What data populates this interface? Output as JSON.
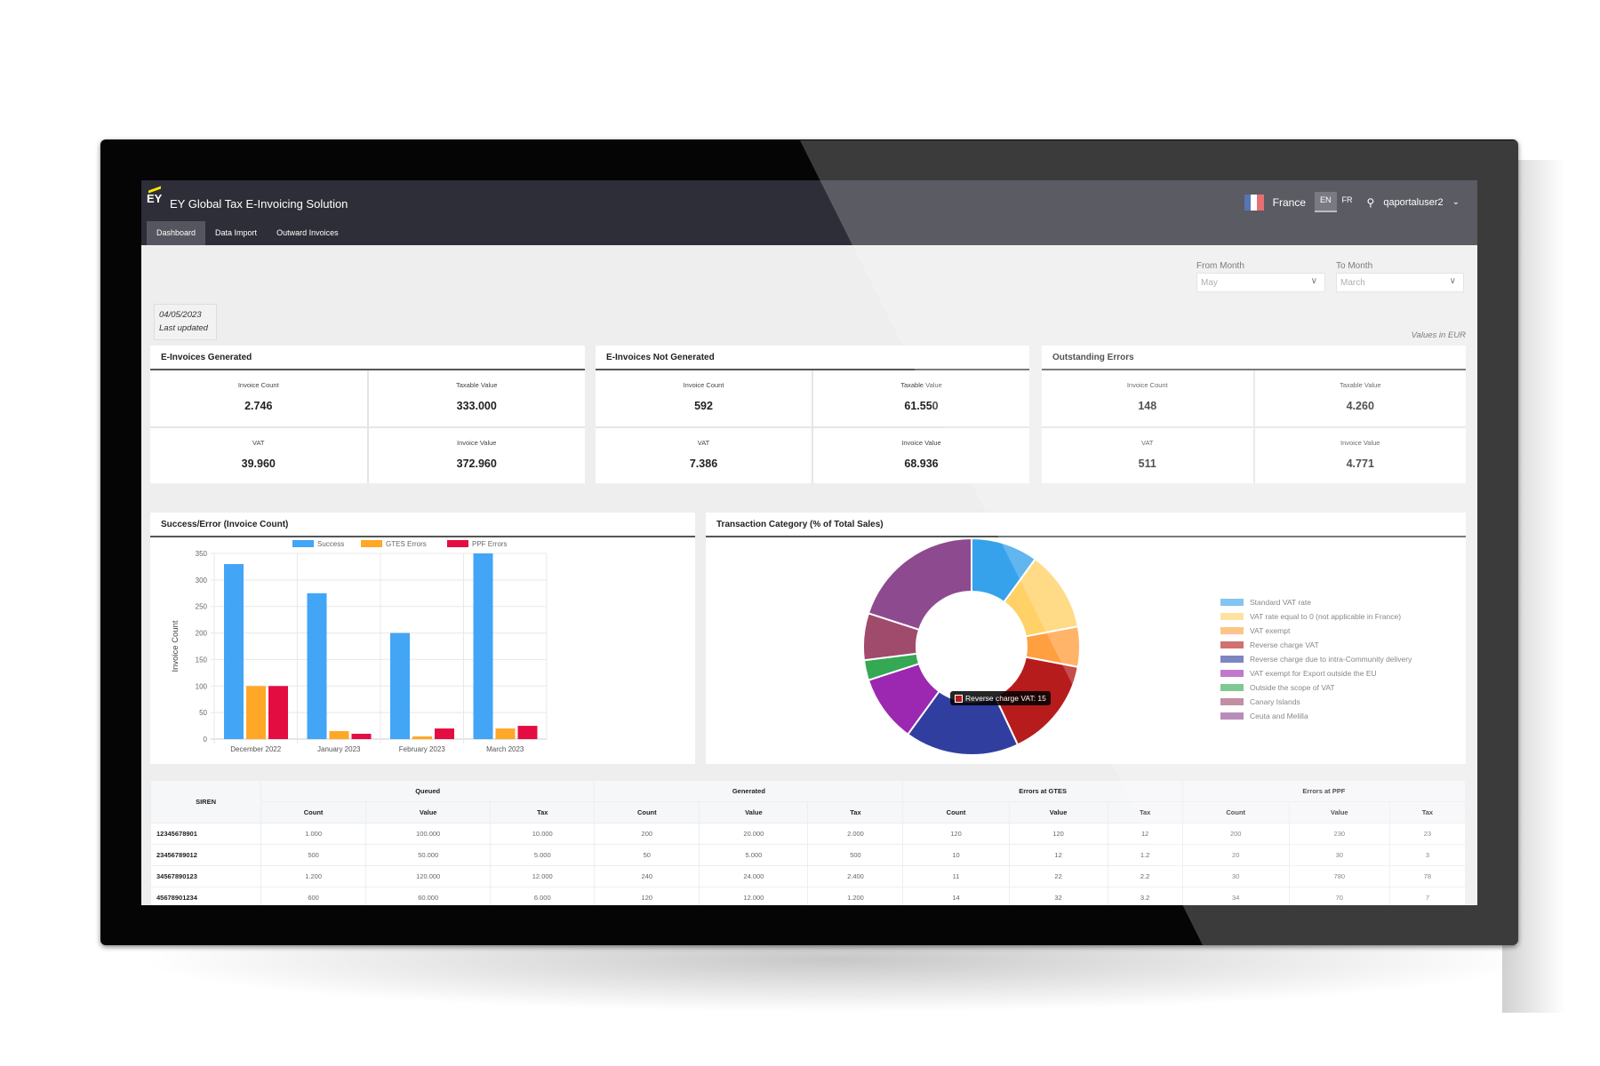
{
  "app": {
    "logo": "EY",
    "title": "EY Global Tax E-Invoicing Solution",
    "country": "France",
    "languages": [
      "EN",
      "FR"
    ],
    "active_language": "EN",
    "user": "qaportaluser2"
  },
  "nav": {
    "tabs": [
      "Dashboard",
      "Data Import",
      "Outward Invoices"
    ],
    "active": "Dashboard"
  },
  "filters": {
    "from_label": "From Month",
    "from_value": "May",
    "to_label": "To Month",
    "to_value": "March"
  },
  "last_updated": {
    "date": "04/05/2023",
    "label": "Last updated"
  },
  "currency_note": "Values in EUR",
  "cards": [
    {
      "title": "E-Invoices Generated",
      "metrics": [
        {
          "label": "Invoice Count",
          "value": "2.746"
        },
        {
          "label": "Taxable Value",
          "value": "333.000"
        },
        {
          "label": "VAT",
          "value": "39.960"
        },
        {
          "label": "Invoice Value",
          "value": "372.960"
        }
      ]
    },
    {
      "title": "E-Invoices Not Generated",
      "metrics": [
        {
          "label": "Invoice Count",
          "value": "592"
        },
        {
          "label": "Taxable Value",
          "value": "61.550"
        },
        {
          "label": "VAT",
          "value": "7.386"
        },
        {
          "label": "Invoice Value",
          "value": "68.936"
        }
      ]
    },
    {
      "title": "Outstanding Errors",
      "metrics": [
        {
          "label": "Invoice Count",
          "value": "148"
        },
        {
          "label": "Taxable Value",
          "value": "4.260"
        },
        {
          "label": "VAT",
          "value": "511"
        },
        {
          "label": "Invoice Value",
          "value": "4.771"
        }
      ]
    }
  ],
  "chart_data": [
    {
      "type": "bar",
      "title": "Success/Error (Invoice Count)",
      "categories": [
        "December 2022",
        "January 2023",
        "February 2023",
        "March 2023"
      ],
      "series": [
        {
          "name": "Success",
          "color": "#42a5f5",
          "values": [
            330,
            275,
            200,
            350
          ]
        },
        {
          "name": "GTES Errors",
          "color": "#ffa726",
          "values": [
            100,
            15,
            5,
            20
          ]
        },
        {
          "name": "PPF Errors",
          "color": "#e30d42",
          "values": [
            100,
            10,
            20,
            25
          ]
        }
      ],
      "xlabel": "",
      "ylabel": "Invoice Count",
      "ylim": [
        0,
        350
      ],
      "yticks": [
        0,
        50,
        100,
        150,
        200,
        250,
        300,
        350
      ],
      "grid": true,
      "legend": "top"
    },
    {
      "type": "pie",
      "title": "Transaction Category (% of Total Sales)",
      "labels": [
        "Standard VAT rate",
        "VAT rate equal to 0 (not applicable in France)",
        "VAT exempt",
        "Reverse charge VAT",
        "Reverse charge due to intra-Community delivery",
        "VAT exempt for Export outside the EU",
        "Outside the scope of VAT",
        "Canary Islands",
        "Ceuta and Melilla"
      ],
      "values": [
        10,
        12,
        6,
        15,
        17,
        10,
        3,
        7,
        20
      ],
      "colors": [
        "#36a2eb",
        "#ffd166",
        "#ff9f40",
        "#b71c1c",
        "#303f9f",
        "#9c27b0",
        "#34a853",
        "#a04a6c",
        "#8e4a8e"
      ],
      "tooltip": "Reverse charge VAT: 15",
      "legend": "right"
    }
  ],
  "table": {
    "siren_header": "SIREN",
    "groups": [
      "Queued",
      "Generated",
      "Errors at GTES",
      "Errors at PPF"
    ],
    "subheaders": [
      "Count",
      "Value",
      "Tax"
    ],
    "rows": [
      [
        "12345678901",
        "1.000",
        "100.000",
        "10.000",
        "200",
        "20.000",
        "2.000",
        "120",
        "120",
        "12",
        "200",
        "230",
        "23"
      ],
      [
        "23456789012",
        "500",
        "50.000",
        "5.000",
        "50",
        "5.000",
        "500",
        "10",
        "12",
        "1.2",
        "20",
        "30",
        "3"
      ],
      [
        "34567890123",
        "1.200",
        "120.000",
        "12.000",
        "240",
        "24.000",
        "2.400",
        "11",
        "22",
        "2.2",
        "30",
        "780",
        "78"
      ],
      [
        "45678901234",
        "600",
        "60.000",
        "6.000",
        "120",
        "12.000",
        "1.200",
        "14",
        "32",
        "3.2",
        "34",
        "70",
        "7"
      ]
    ]
  }
}
